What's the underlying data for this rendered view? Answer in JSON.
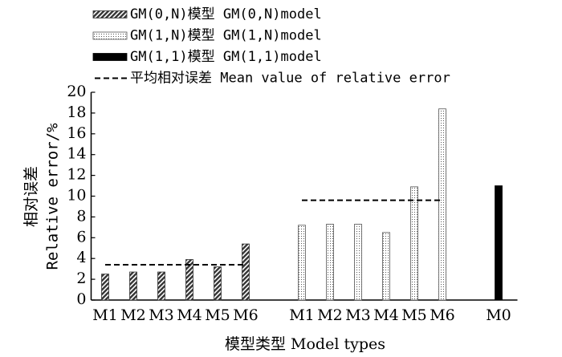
{
  "chart_data": {
    "type": "bar",
    "ylabel": [
      "相对误差",
      "Relative error/%"
    ],
    "xlabel": "模型类型 Model types",
    "categories": [
      "M1",
      "M2",
      "M3",
      "M4",
      "M5",
      "M6",
      null,
      "M1",
      "M2",
      "M3",
      "M4",
      "M5",
      "M6",
      null,
      "M0"
    ],
    "series": [
      {
        "name": "GM(0,N)模型 GM(0,N)model",
        "color": "#333333",
        "pattern": "hatch",
        "values": [
          2.5,
          2.7,
          2.7,
          3.9,
          3.2,
          5.4,
          null,
          null,
          null,
          null,
          null,
          null,
          null,
          null,
          null
        ]
      },
      {
        "name": "GM(1,N)模型 GM(1,N)model",
        "color": "#555555",
        "pattern": "dots",
        "values": [
          null,
          null,
          null,
          null,
          null,
          null,
          null,
          7.2,
          7.3,
          7.3,
          6.5,
          10.9,
          18.4,
          null,
          null
        ]
      },
      {
        "name": "GM(1,1)模型 GM(1,1)model",
        "color": "#000000",
        "pattern": "solid",
        "values": [
          null,
          null,
          null,
          null,
          null,
          null,
          null,
          null,
          null,
          null,
          null,
          null,
          null,
          null,
          11.0
        ]
      },
      {
        "name": "平均相对误差 Mean value of relative error",
        "color": "#000000",
        "type": "line",
        "dash": true,
        "values": [
          3.4,
          3.4,
          3.4,
          3.4,
          3.4,
          3.4,
          null,
          9.6,
          9.6,
          9.6,
          9.6,
          9.6,
          9.6,
          null,
          null
        ]
      }
    ],
    "ylim": [
      0,
      20
    ],
    "yticks": [
      0,
      2,
      4,
      6,
      8,
      10,
      12,
      14,
      16,
      18,
      20
    ],
    "grid": false
  }
}
